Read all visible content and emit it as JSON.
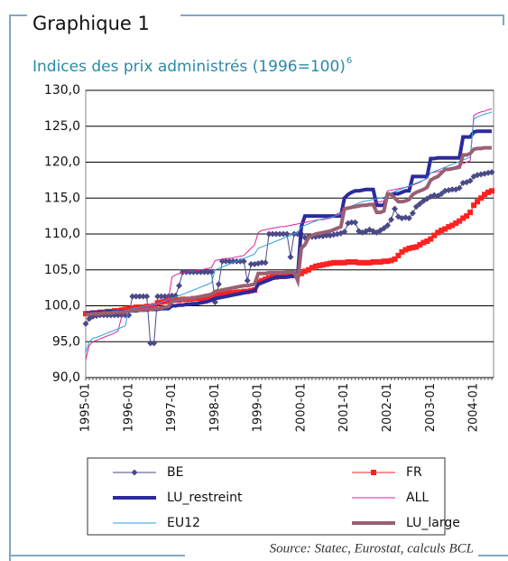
{
  "chart_data": {
    "type": "line",
    "heading": "Graphique 1",
    "title": "Indices des prix administrés (1996=100)",
    "title_note": "6",
    "source": "Source: Statec, Eurostat, calculs BCL",
    "categories": [
      "1995-01",
      null,
      null,
      null,
      null,
      null,
      null,
      null,
      null,
      null,
      null,
      null,
      "1996-01",
      null,
      null,
      null,
      null,
      null,
      null,
      null,
      null,
      null,
      null,
      null,
      "1997-01",
      null,
      null,
      null,
      null,
      null,
      null,
      null,
      null,
      null,
      null,
      null,
      "1998-01",
      null,
      null,
      null,
      null,
      null,
      null,
      null,
      null,
      null,
      null,
      null,
      "1999-01",
      null,
      null,
      null,
      null,
      null,
      null,
      null,
      null,
      null,
      null,
      null,
      "2000-01",
      null,
      null,
      null,
      null,
      null,
      null,
      null,
      null,
      null,
      null,
      null,
      "2001-01",
      null,
      null,
      null,
      null,
      null,
      null,
      null,
      null,
      null,
      null,
      null,
      "2002-01",
      null,
      null,
      null,
      null,
      null,
      null,
      null,
      null,
      null,
      null,
      null,
      "2003-01",
      null,
      null,
      null,
      null,
      null,
      null,
      null,
      null,
      null,
      null,
      null,
      "2004-01",
      null,
      null,
      null,
      null,
      null
    ],
    "ylim": [
      90,
      130
    ],
    "yticks": [
      {
        "value": 90,
        "label": "90,0"
      },
      {
        "value": 95,
        "label": "95,0"
      },
      {
        "value": 100,
        "label": "100,0"
      },
      {
        "value": 105,
        "label": "105,0"
      },
      {
        "value": 110,
        "label": "110,0"
      },
      {
        "value": 115,
        "label": "115,0"
      },
      {
        "value": 120,
        "label": "120,0"
      },
      {
        "value": 125,
        "label": "125,0"
      },
      {
        "value": 130,
        "label": "130,0"
      }
    ],
    "grid": true,
    "series": [
      {
        "name": "BE",
        "color": "#4a4a88",
        "width": 1,
        "marker": "diamond",
        "values": [
          97.5,
          98.2,
          98.5,
          98.6,
          98.7,
          98.7,
          98.7,
          98.7,
          98.7,
          98.7,
          98.7,
          98.7,
          98.7,
          101.3,
          101.3,
          101.3,
          101.3,
          101.3,
          94.8,
          94.8,
          101.3,
          101.3,
          101.3,
          101.3,
          101.4,
          101.4,
          102.8,
          104.7,
          104.7,
          104.7,
          104.7,
          104.7,
          104.7,
          104.7,
          104.7,
          104.7,
          100.5,
          103,
          106.2,
          106.2,
          106.2,
          106.2,
          106.2,
          106.2,
          106.2,
          103.5,
          105.8,
          105.8,
          105.9,
          106,
          106,
          110,
          110,
          110,
          110,
          110,
          110,
          106.8,
          110,
          110,
          110,
          109.5,
          109.6,
          109.6,
          109.6,
          109.7,
          109.7,
          109.8,
          109.8,
          109.9,
          110,
          110.1,
          110.3,
          111.5,
          111.6,
          111.6,
          110.4,
          110.2,
          110.4,
          110.6,
          110.4,
          110.2,
          110.5,
          110.8,
          111.2,
          112,
          113.5,
          112.4,
          112.2,
          112.3,
          112.2,
          112.9,
          113.8,
          114.2,
          114.6,
          114.9,
          115.2,
          115.4,
          115.3,
          115.6,
          116,
          116.1,
          116.2,
          116.2,
          116.4,
          117.1,
          117.2,
          117.4,
          118,
          118.2,
          118.3,
          118.4,
          118.5,
          118.6
        ]
      },
      {
        "name": "FR",
        "color": "#ff2020",
        "width": 1,
        "marker": "square",
        "values": [
          98.9,
          98.9,
          99,
          99,
          99.1,
          99.1,
          99.2,
          99.2,
          99.3,
          99.3,
          99.4,
          99.5,
          99.6,
          99.7,
          99.8,
          99.8,
          99.8,
          99.9,
          99.9,
          100,
          100.4,
          100.5,
          100.6,
          100.7,
          100.8,
          100.8,
          100.8,
          100.9,
          100.9,
          100.9,
          101,
          101,
          101,
          101.1,
          101.1,
          101.2,
          101.5,
          101.6,
          101.7,
          101.7,
          101.8,
          101.8,
          101.9,
          101.9,
          102,
          102,
          102.1,
          102.2,
          103.3,
          103.5,
          103.7,
          103.9,
          104,
          104,
          104.1,
          104.1,
          104.2,
          104.2,
          104.3,
          104.4,
          104.5,
          104.8,
          105,
          105.3,
          105.5,
          105.6,
          105.7,
          105.8,
          105.9,
          106,
          106,
          106,
          106,
          106.1,
          106.1,
          106.1,
          106,
          106,
          106,
          106,
          106.1,
          106.1,
          106.1,
          106.2,
          106.2,
          106.3,
          106.5,
          107,
          107.5,
          107.8,
          108,
          108.1,
          108.2,
          108.5,
          108.8,
          109,
          109.3,
          109.8,
          110.2,
          110.5,
          110.7,
          111,
          111.2,
          111.5,
          111.8,
          112.2,
          112.5,
          113,
          114,
          114.5,
          115,
          115.5,
          115.8,
          116
        ]
      },
      {
        "name": "LU_restreint",
        "color": "#2b2b9c",
        "width": 4,
        "marker": null,
        "values": [
          99,
          99,
          99.1,
          99.1,
          99.1,
          99.1,
          99.2,
          99.2,
          99.2,
          99.2,
          99.2,
          99.2,
          99.3,
          99.3,
          99.3,
          99.4,
          99.4,
          99.4,
          99.5,
          99.5,
          99.5,
          99.6,
          99.6,
          99.6,
          100,
          100,
          100.1,
          100.1,
          100.2,
          100.2,
          100.3,
          100.3,
          100.4,
          100.5,
          100.6,
          100.8,
          101,
          101.1,
          101.2,
          101.3,
          101.4,
          101.5,
          101.6,
          101.7,
          101.8,
          101.9,
          102,
          102.1,
          103,
          103.2,
          103.4,
          103.6,
          103.8,
          104,
          104,
          104,
          104,
          104.1,
          104.1,
          104.2,
          111,
          112.5,
          112.5,
          112.5,
          112.5,
          112.5,
          112.5,
          112.5,
          112.5,
          112.5,
          112.5,
          112.5,
          115,
          115.5,
          115.8,
          116,
          116,
          116.1,
          116.2,
          116.2,
          116.2,
          114,
          114,
          114,
          115.5,
          115.5,
          115.6,
          115.6,
          115.8,
          116,
          116,
          118,
          118,
          118,
          118,
          118,
          120.5,
          120.5,
          120.6,
          120.6,
          120.6,
          120.6,
          120.6,
          120.6,
          120.6,
          123.5,
          123.5,
          123.5,
          124.2,
          124.3,
          124.3,
          124.3,
          124.3,
          124.3
        ]
      },
      {
        "name": "ALL",
        "color": "#e0209c",
        "width": 1,
        "marker": null,
        "values": [
          92.5,
          94.5,
          95,
          95.2,
          95.4,
          95.6,
          95.8,
          96,
          96.2,
          96.5,
          98.5,
          99,
          99.2,
          99.4,
          99.5,
          99.6,
          99.7,
          99.8,
          99.9,
          100,
          100.2,
          100.4,
          100.6,
          100.8,
          104,
          104.3,
          104.5,
          104.6,
          104.7,
          104.8,
          104.8,
          104.9,
          105,
          105.1,
          105.2,
          105.3,
          106.3,
          106.4,
          106.5,
          106.6,
          106.6,
          106.7,
          106.8,
          106.9,
          107,
          107.5,
          108,
          108.5,
          110.2,
          110.5,
          110.6,
          110.7,
          110.8,
          110.9,
          111,
          111,
          111.1,
          111.2,
          111.3,
          111.4,
          111.5,
          111.6,
          111.7,
          111.8,
          111.9,
          112,
          112,
          112.1,
          112.2,
          112.4,
          112.8,
          113,
          113.5,
          113.6,
          113.7,
          113.8,
          113.9,
          114,
          114.1,
          114.2,
          114.3,
          114.4,
          114.5,
          114.6,
          116,
          116.1,
          116.2,
          116.3,
          116.4,
          116.5,
          116.6,
          116.8,
          117,
          117.2,
          117.5,
          117.8,
          118.5,
          118.6,
          118.7,
          118.8,
          118.9,
          119,
          119.2,
          119.4,
          119.6,
          119.8,
          120,
          120.2,
          126.5,
          126.8,
          127,
          127.1,
          127.3,
          127.4
        ]
      },
      {
        "name": "EU12",
        "color": "#2a9ee0",
        "width": 1,
        "marker": null,
        "values": [
          93.5,
          95,
          95.5,
          95.6,
          95.8,
          96,
          96.2,
          96.4,
          96.6,
          96.8,
          97,
          97.2,
          99.5,
          99.6,
          99.7,
          99.8,
          99.9,
          100,
          100.1,
          100.2,
          100.3,
          100.5,
          100.7,
          100.9,
          101,
          101.2,
          101.4,
          101.6,
          101.8,
          102,
          102.2,
          102.4,
          102.6,
          102.8,
          103,
          103.2,
          105,
          105.2,
          105.4,
          105.6,
          105.8,
          106,
          106.2,
          106.4,
          106.6,
          106.8,
          107,
          107.2,
          108,
          108.2,
          108.4,
          108.6,
          108.8,
          109,
          109.2,
          109.4,
          109.6,
          109.8,
          110,
          110.2,
          111,
          111.2,
          111.4,
          111.6,
          111.8,
          112,
          112.1,
          112.2,
          112.3,
          112.4,
          112.6,
          112.8,
          113.5,
          113.7,
          113.9,
          114.1,
          114.3,
          114.5,
          114.6,
          114.7,
          114.8,
          114.9,
          115,
          115.1,
          115.5,
          115.7,
          115.9,
          116.1,
          116.3,
          116.5,
          116.7,
          116.9,
          117.1,
          117.3,
          117.5,
          117.7,
          118.5,
          118.7,
          118.9,
          119.1,
          119.3,
          119.5,
          119.7,
          119.9,
          120.1,
          120.3,
          120.5,
          120.7,
          126,
          126.3,
          126.5,
          126.7,
          126.8,
          127
        ]
      },
      {
        "name": "LU_large",
        "color": "#9a6072",
        "width": 4,
        "marker": null,
        "values": [
          98.8,
          98.8,
          98.9,
          98.9,
          98.9,
          99,
          99,
          99,
          99.1,
          99.1,
          99.1,
          99.2,
          99.3,
          99.3,
          99.4,
          99.4,
          99.4,
          99.5,
          99.5,
          99.6,
          99.6,
          99.7,
          99.8,
          99.9,
          100.6,
          100.7,
          100.8,
          100.9,
          101,
          101,
          101.1,
          101.2,
          101.3,
          101.4,
          101.5,
          101.6,
          102,
          102.1,
          102.2,
          102.3,
          102.4,
          102.5,
          102.6,
          102.7,
          102.8,
          102.8,
          102.9,
          103,
          104.5,
          104.5,
          104.5,
          104.6,
          104.6,
          104.6,
          104.6,
          104.6,
          104.7,
          104.7,
          104.7,
          103.5,
          108,
          108.5,
          109.5,
          109.8,
          110,
          110.1,
          110.2,
          110.3,
          110.4,
          110.6,
          110.8,
          111,
          113.5,
          113.6,
          113.7,
          113.8,
          113.9,
          114,
          114,
          114.1,
          114.1,
          113,
          113,
          113.2,
          115.6,
          115.5,
          115,
          114.5,
          114.5,
          114.6,
          114.8,
          115.5,
          115.8,
          116,
          116.2,
          116.5,
          117.5,
          117.8,
          118,
          118.5,
          119,
          119,
          119.1,
          119.2,
          119.3,
          121,
          121,
          121.2,
          121.8,
          121.9,
          121.9,
          122,
          122,
          122
        ]
      }
    ]
  }
}
